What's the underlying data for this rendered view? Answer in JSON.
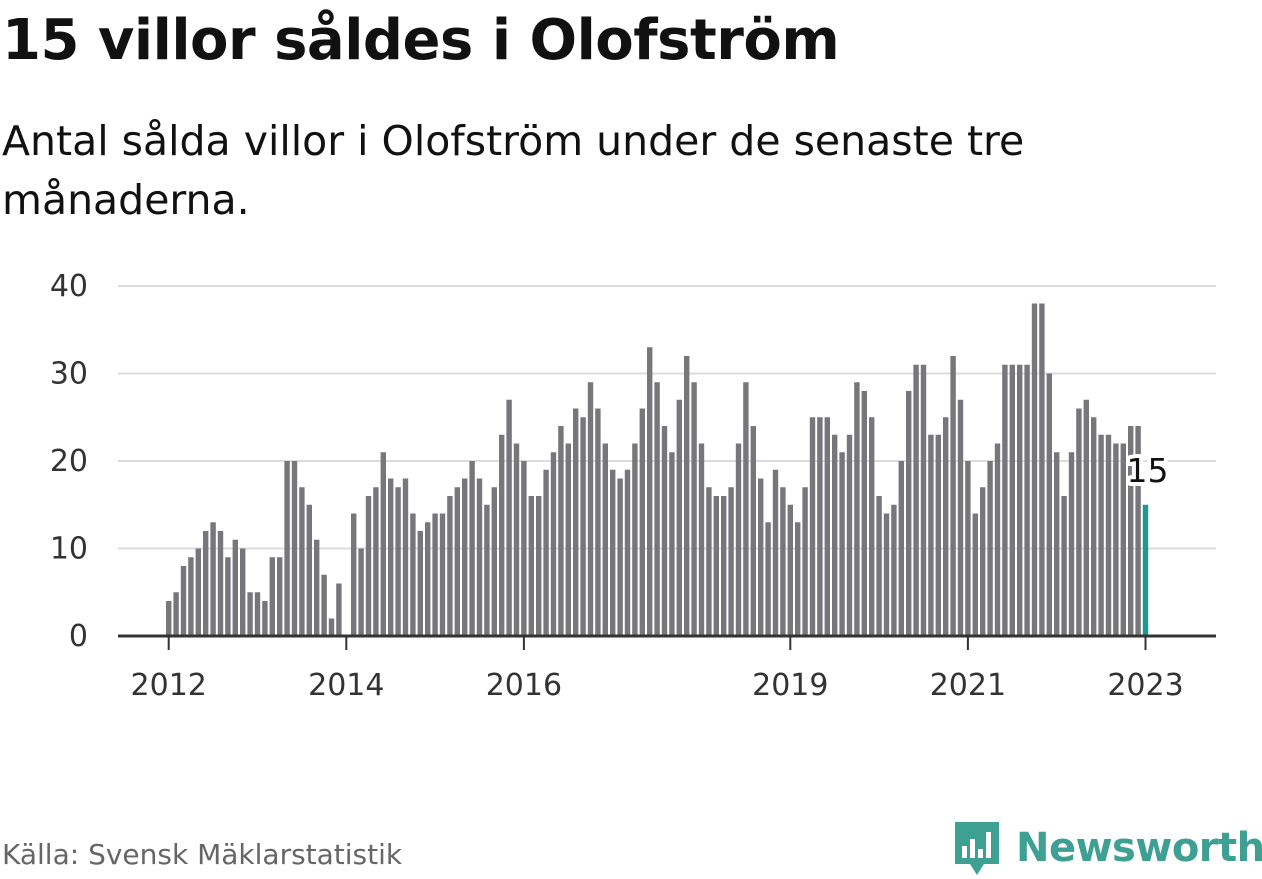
{
  "header": {
    "title": "15 villor såldes i Olofström",
    "subtitle": "Antal sålda villor i Olofström under de senaste tre månaderna."
  },
  "footer": {
    "source": "Källa: Svensk Mäklarstatistik",
    "brand": "Newsworthy",
    "brand_icon": "newsworthy-logo-icon"
  },
  "colors": {
    "bar": "#77767b",
    "highlight": "#179c8f",
    "grid": "#dcdcdc",
    "axis": "#333333",
    "brand": "#3e9f93"
  },
  "chart_data": {
    "type": "bar",
    "title": "15 villor såldes i Olofström",
    "ylim": [
      0,
      40
    ],
    "yticks": [
      "0",
      "10",
      "20",
      "30",
      "40"
    ],
    "xtick_labels": [
      "2012",
      "2014",
      "2016",
      "2019",
      "2021",
      "2023"
    ],
    "grid": true,
    "highlight": {
      "label": "15",
      "value": 15
    },
    "values": [
      4,
      5,
      8,
      9,
      10,
      12,
      13,
      12,
      9,
      11,
      10,
      5,
      5,
      4,
      9,
      9,
      20,
      20,
      17,
      15,
      11,
      7,
      2,
      6,
      0,
      14,
      10,
      16,
      17,
      21,
      18,
      17,
      18,
      14,
      12,
      13,
      14,
      14,
      16,
      17,
      18,
      20,
      18,
      15,
      17,
      23,
      27,
      22,
      20,
      16,
      16,
      19,
      21,
      24,
      22,
      26,
      25,
      29,
      26,
      22,
      19,
      18,
      19,
      22,
      26,
      33,
      29,
      24,
      21,
      27,
      32,
      29,
      22,
      17,
      16,
      16,
      17,
      22,
      29,
      24,
      18,
      13,
      19,
      17,
      15,
      13,
      17,
      25,
      25,
      25,
      23,
      21,
      23,
      29,
      28,
      25,
      16,
      14,
      15,
      20,
      28,
      31,
      31,
      23,
      23,
      25,
      32,
      27,
      20,
      14,
      17,
      20,
      22,
      31,
      31,
      31,
      31,
      38,
      38,
      30,
      21,
      16,
      21,
      26,
      27,
      25,
      23,
      23,
      22,
      22,
      24,
      24,
      15
    ]
  }
}
